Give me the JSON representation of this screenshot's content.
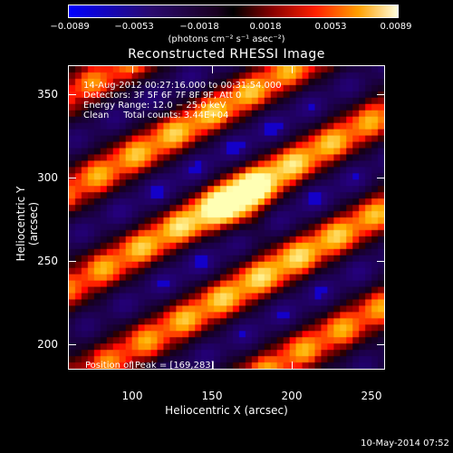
{
  "colorbar": {
    "tick_labels": [
      "−0.0089",
      "−0.0053",
      "−0.0018",
      "0.0018",
      "0.0053",
      "0.0089"
    ],
    "units": "(photons cm⁻² s⁻¹ asec⁻²)",
    "range": [
      -0.0089,
      0.0089
    ]
  },
  "title": "Reconstructed RHESSI Image",
  "info": {
    "time": "14-Aug-2012 00:27:16.000 to 00:31:54.000",
    "detectors": "Detectors: 3F 5F 6F 7F 8F 9F, Att 0",
    "energy": "Energy Range: 12.0 − 25.0 keV",
    "method": "Clean     Total counts: 3.44E+04",
    "peak": "Position of Peak = [169,283]"
  },
  "axes": {
    "xlabel": "Heliocentric X (arcsec)",
    "ylabel": "Heliocentric Y (arcsec)",
    "xticks": [
      "100",
      "150",
      "200",
      "250"
    ],
    "yticks": [
      "200",
      "250",
      "300",
      "350"
    ],
    "xlim": [
      64,
      260
    ],
    "ylim": [
      180,
      373
    ]
  },
  "footer": "10-May-2014 07:52"
}
